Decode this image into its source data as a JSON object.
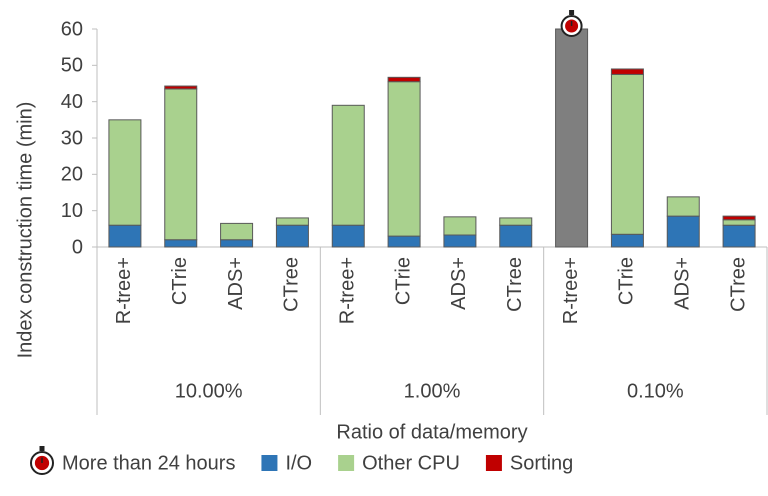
{
  "chart_data": {
    "type": "bar",
    "stacked": true,
    "y_label": "Index construction time (min)",
    "x_label": "Ratio of data/memory",
    "groups": [
      {
        "label": "10.00%",
        "categories": [
          "R-tree+",
          "CTrie",
          "ADS+",
          "CTree"
        ]
      },
      {
        "label": "1.00%",
        "categories": [
          "R-tree+",
          "CTrie",
          "ADS+",
          "CTree"
        ]
      },
      {
        "label": "0.10%",
        "categories": [
          "R-tree+",
          "CTrie",
          "ADS+",
          "CTree"
        ]
      }
    ],
    "series": [
      {
        "name": "More than 24 hours",
        "color": "#7f7f7f",
        "marker": "clock",
        "values": [
          null,
          null,
          null,
          null,
          null,
          null,
          null,
          null,
          60,
          null,
          null,
          null
        ]
      },
      {
        "name": "I/O",
        "color": "#2e75b6",
        "values": [
          6,
          2,
          2,
          6,
          6,
          3,
          3.3,
          6,
          null,
          3.5,
          8.5,
          6
        ]
      },
      {
        "name": "Other CPU",
        "color": "#a9d18e",
        "values": [
          29,
          41.5,
          4.5,
          2,
          33,
          42.5,
          5,
          2,
          null,
          44,
          5.3,
          1.5
        ]
      },
      {
        "name": "Sorting",
        "color": "#c00000",
        "values": [
          0,
          0.8,
          0,
          0,
          0,
          1.2,
          0,
          0,
          null,
          1.5,
          0,
          1
        ]
      }
    ],
    "ylim": [
      0,
      60
    ],
    "yticks": [
      0,
      10,
      20,
      30,
      40,
      50,
      60
    ],
    "grid": false
  }
}
